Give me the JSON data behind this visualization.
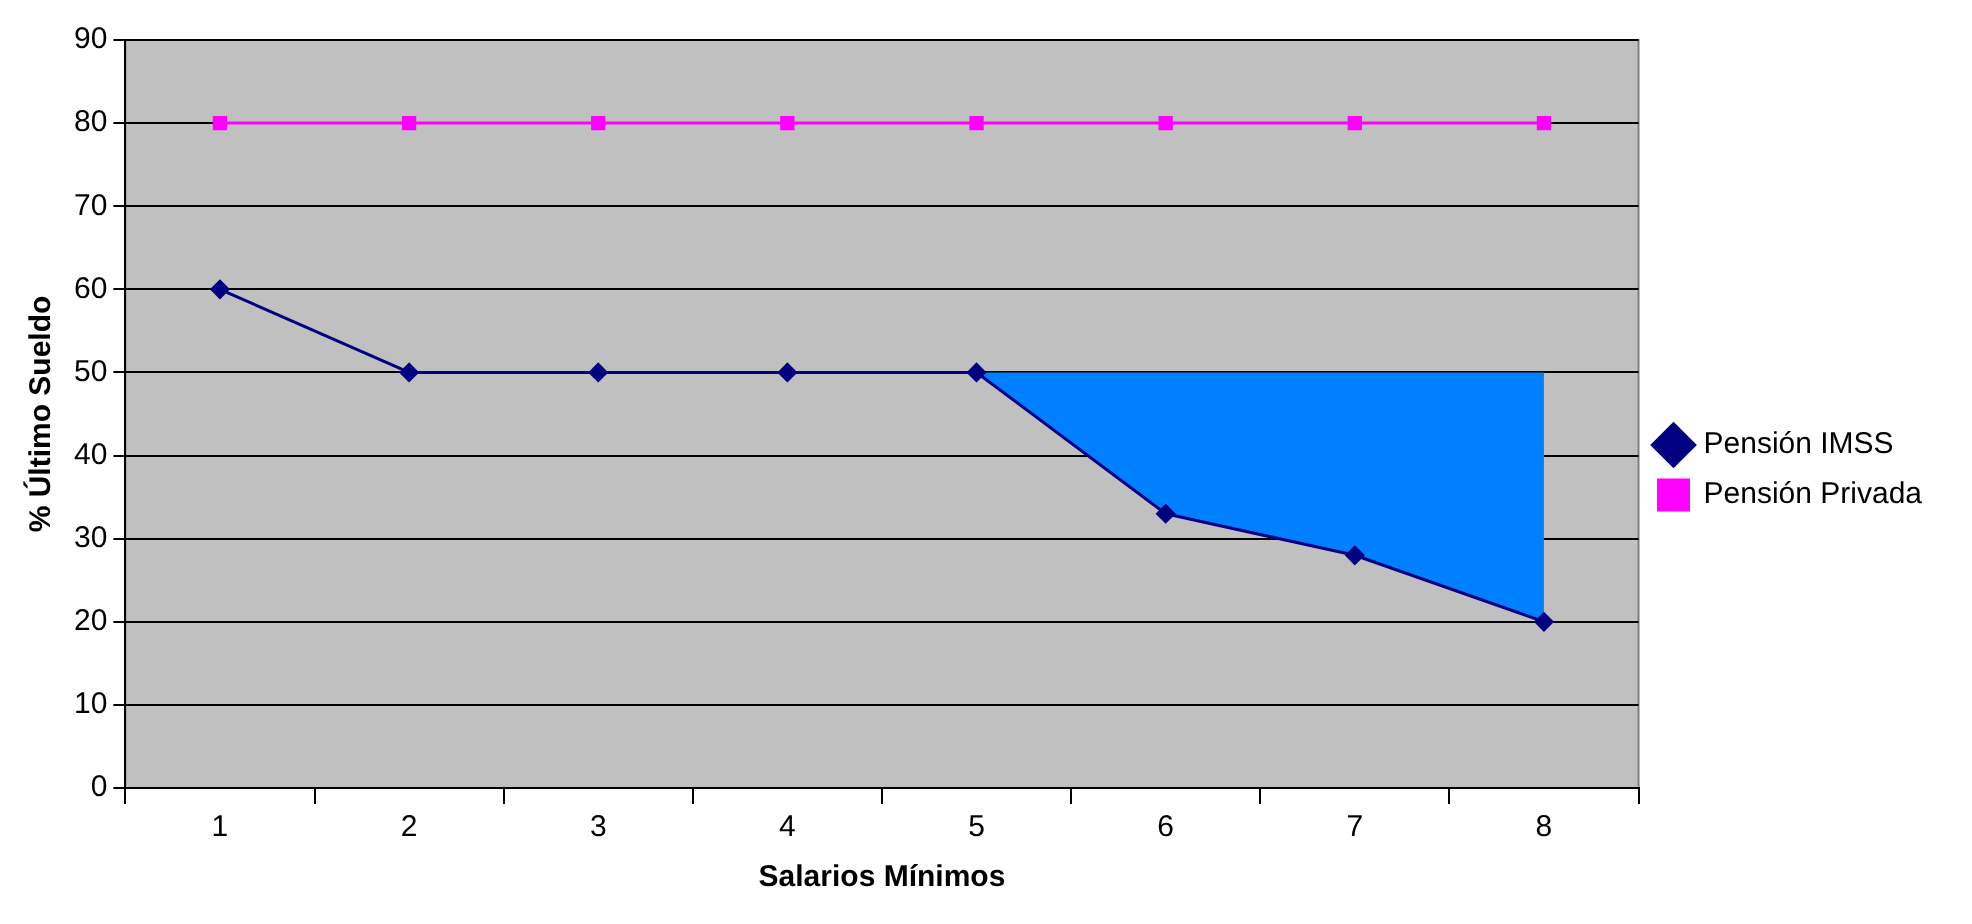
{
  "chart_data": {
    "type": "line",
    "xlabel": "Salarios Mínimos",
    "ylabel": "% Último Sueldo",
    "categories": [
      "1",
      "2",
      "3",
      "4",
      "5",
      "6",
      "7",
      "8"
    ],
    "ylim": [
      0,
      90
    ],
    "yticks": [
      0,
      10,
      20,
      30,
      40,
      50,
      60,
      70,
      80,
      90
    ],
    "grid": "y",
    "legend": "right",
    "series": [
      {
        "name": "Pensión IMSS",
        "color": "#000080",
        "marker": "diamond",
        "values": [
          60,
          50,
          50,
          50,
          50,
          33,
          28,
          20
        ]
      },
      {
        "name": "Pensión Privada",
        "color": "#ff00ff",
        "marker": "square",
        "values": [
          80,
          80,
          80,
          80,
          80,
          80,
          80,
          80
        ]
      },
      {
        "type": "area",
        "color": "#0080ff",
        "values": [
          null,
          null,
          null,
          null,
          50,
          50,
          50,
          50
        ]
      }
    ]
  }
}
